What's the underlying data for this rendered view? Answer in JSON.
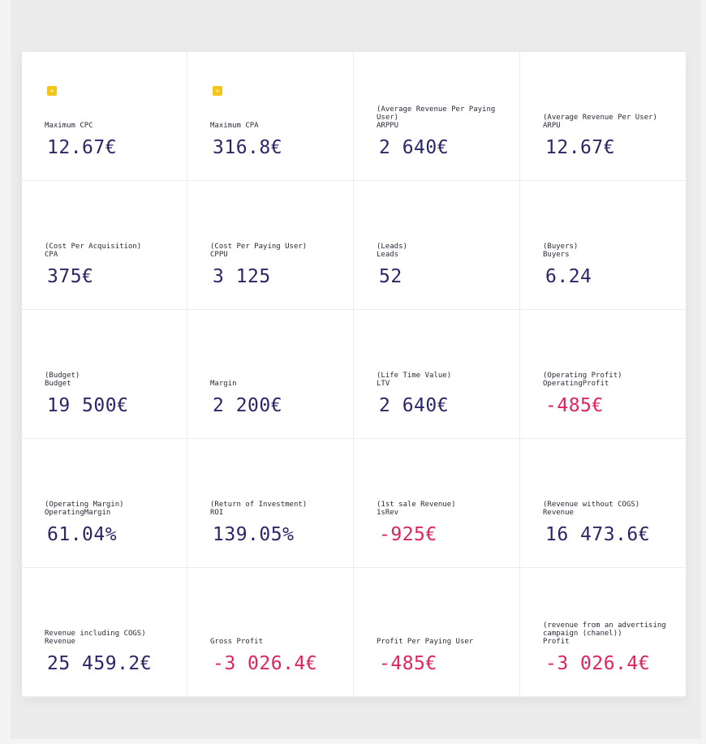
{
  "colors": {
    "positive": "#2b2766",
    "negative": "#e0245e",
    "star": "#f5c518"
  },
  "cards": [
    {
      "star": true,
      "desc": "",
      "key": "Maximum CPC",
      "value": "12.67€",
      "negative": false
    },
    {
      "star": true,
      "desc": "",
      "key": "Maximum CPA",
      "value": "316.8€",
      "negative": false
    },
    {
      "star": false,
      "desc": "(Average Revenue Per Paying User)",
      "key": "ARPPU",
      "value": "2 640€",
      "negative": false
    },
    {
      "star": false,
      "desc": "(Average Revenue Per User)",
      "key": "ARPU",
      "value": "12.67€",
      "negative": false
    },
    {
      "star": false,
      "desc": "(Cost Per Acquisition)",
      "key": "CPA",
      "value": "375€",
      "negative": false
    },
    {
      "star": false,
      "desc": "(Cost Per Paying User)",
      "key": "CPPU",
      "value": "3 125",
      "negative": false
    },
    {
      "star": false,
      "desc": "(Leads)",
      "key": "Leads",
      "value": "52",
      "negative": false
    },
    {
      "star": false,
      "desc": "(Buyers)",
      "key": "Buyers",
      "value": "6.24",
      "negative": false
    },
    {
      "star": false,
      "desc": "(Budget)",
      "key": "Budget",
      "value": "19 500€",
      "negative": false
    },
    {
      "star": false,
      "desc": "",
      "key": "Margin",
      "value": "2 200€",
      "negative": false
    },
    {
      "star": false,
      "desc": "(Life Time Value)",
      "key": "LTV",
      "value": "2 640€",
      "negative": false
    },
    {
      "star": false,
      "desc": "(Operating Profit)",
      "key": "OperatingProfit",
      "value": "-485€",
      "negative": true
    },
    {
      "star": false,
      "desc": "(Operating Margin)",
      "key": "OperatingMargin",
      "value": "61.04%",
      "negative": false
    },
    {
      "star": false,
      "desc": "(Return of Investment)",
      "key": "ROI",
      "value": "139.05%",
      "negative": false
    },
    {
      "star": false,
      "desc": "(1st sale Revenue)",
      "key": "1sRev",
      "value": "-925€",
      "negative": true
    },
    {
      "star": false,
      "desc": "(Revenue without COGS)",
      "key": "Revenue",
      "value": "16 473.6€",
      "negative": false
    },
    {
      "star": false,
      "desc": "Revenue including COGS)",
      "key": "Revenue",
      "value": "25 459.2€",
      "negative": false
    },
    {
      "star": false,
      "desc": "",
      "key": "Gross Profit",
      "value": "-3 026.4€",
      "negative": true
    },
    {
      "star": false,
      "desc": "",
      "key": "Profit Per Paying User",
      "value": "-485€",
      "negative": true
    },
    {
      "star": false,
      "desc": "(revenue from an advertising campaign (chanel))",
      "key": "Profit",
      "value": "-3 026.4€",
      "negative": true
    }
  ]
}
